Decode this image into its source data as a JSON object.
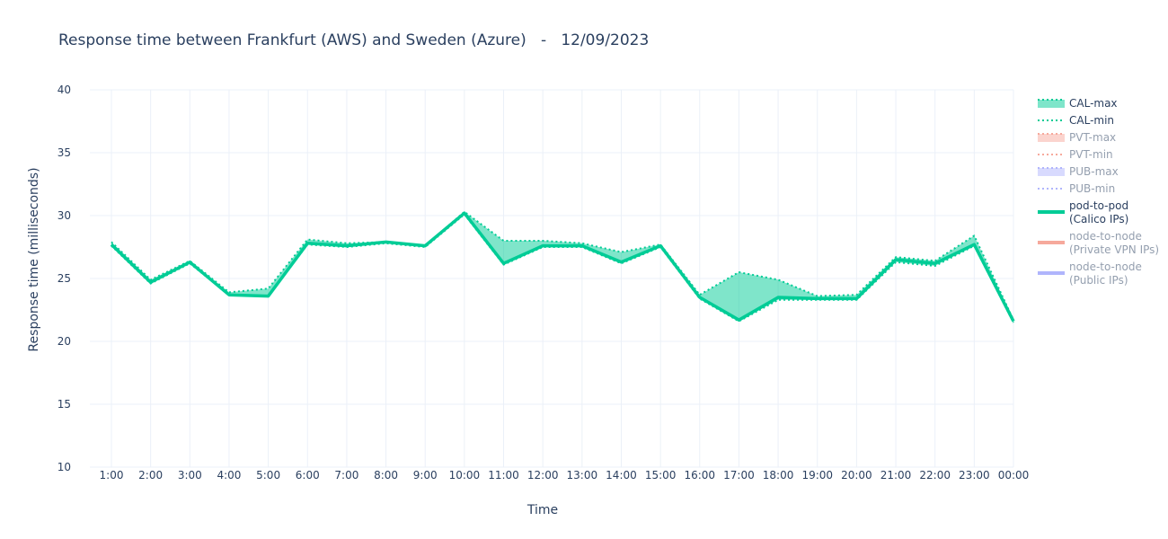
{
  "chart_data": {
    "type": "line",
    "title": "Response time between Frankfurt (AWS) and Sweden (Azure)   -   12/09/2023",
    "xlabel": "Time",
    "ylabel": "Response time (milliseconds)",
    "ylim": [
      10,
      40
    ],
    "yticks": [
      10,
      15,
      20,
      25,
      30,
      35,
      40
    ],
    "grid": true,
    "legend_position": "right",
    "categories": [
      "1:00",
      "2:00",
      "3:00",
      "4:00",
      "5:00",
      "6:00",
      "7:00",
      "8:00",
      "9:00",
      "10:00",
      "11:00",
      "12:00",
      "13:00",
      "14:00",
      "15:00",
      "16:00",
      "17:00",
      "18:00",
      "19:00",
      "20:00",
      "21:00",
      "22:00",
      "23:00",
      "00:00"
    ],
    "series": [
      {
        "name": "CAL-max",
        "values": [
          27.9,
          24.9,
          26.4,
          23.9,
          24.2,
          28.1,
          27.8,
          27.9,
          27.6,
          30.3,
          28.0,
          28.0,
          27.8,
          27.1,
          27.7,
          23.7,
          25.5,
          24.9,
          23.6,
          23.7,
          26.7,
          26.4,
          28.4,
          21.7
        ],
        "color": "#00cc96",
        "style": "dotted",
        "fill": true,
        "visible": true
      },
      {
        "name": "CAL-min",
        "values": [
          27.6,
          24.6,
          26.2,
          23.7,
          23.6,
          27.7,
          27.5,
          27.8,
          27.5,
          30.1,
          26.1,
          27.5,
          27.5,
          26.2,
          27.5,
          23.4,
          21.6,
          23.3,
          23.3,
          23.3,
          26.3,
          26.0,
          27.6,
          21.5
        ],
        "color": "#00cc96",
        "style": "dotted",
        "fill": false,
        "visible": true
      },
      {
        "name": "PVT-max",
        "color": "#EF553B",
        "style": "dotted",
        "visible": false
      },
      {
        "name": "PVT-min",
        "color": "#EF553B",
        "style": "dotted",
        "visible": false
      },
      {
        "name": "PUB-max",
        "color": "#636efa",
        "style": "dotted",
        "visible": false
      },
      {
        "name": "PUB-min",
        "color": "#636efa",
        "style": "dotted",
        "visible": false
      },
      {
        "name": "pod-to-pod\n(Calico IPs)",
        "values": [
          27.7,
          24.7,
          26.3,
          23.7,
          23.6,
          27.8,
          27.6,
          27.9,
          27.6,
          30.2,
          26.2,
          27.6,
          27.6,
          26.3,
          27.6,
          23.5,
          21.7,
          23.5,
          23.4,
          23.4,
          26.5,
          26.2,
          27.7,
          21.6
        ],
        "color": "#00cc96",
        "style": "solid",
        "visible": true
      },
      {
        "name": "node-to-node\n(Private VPN IPs)",
        "color": "#EF553B",
        "style": "solid",
        "visible": false
      },
      {
        "name": "node-to-node\n(Public IPs)",
        "color": "#636efa",
        "style": "solid",
        "visible": false
      }
    ]
  }
}
